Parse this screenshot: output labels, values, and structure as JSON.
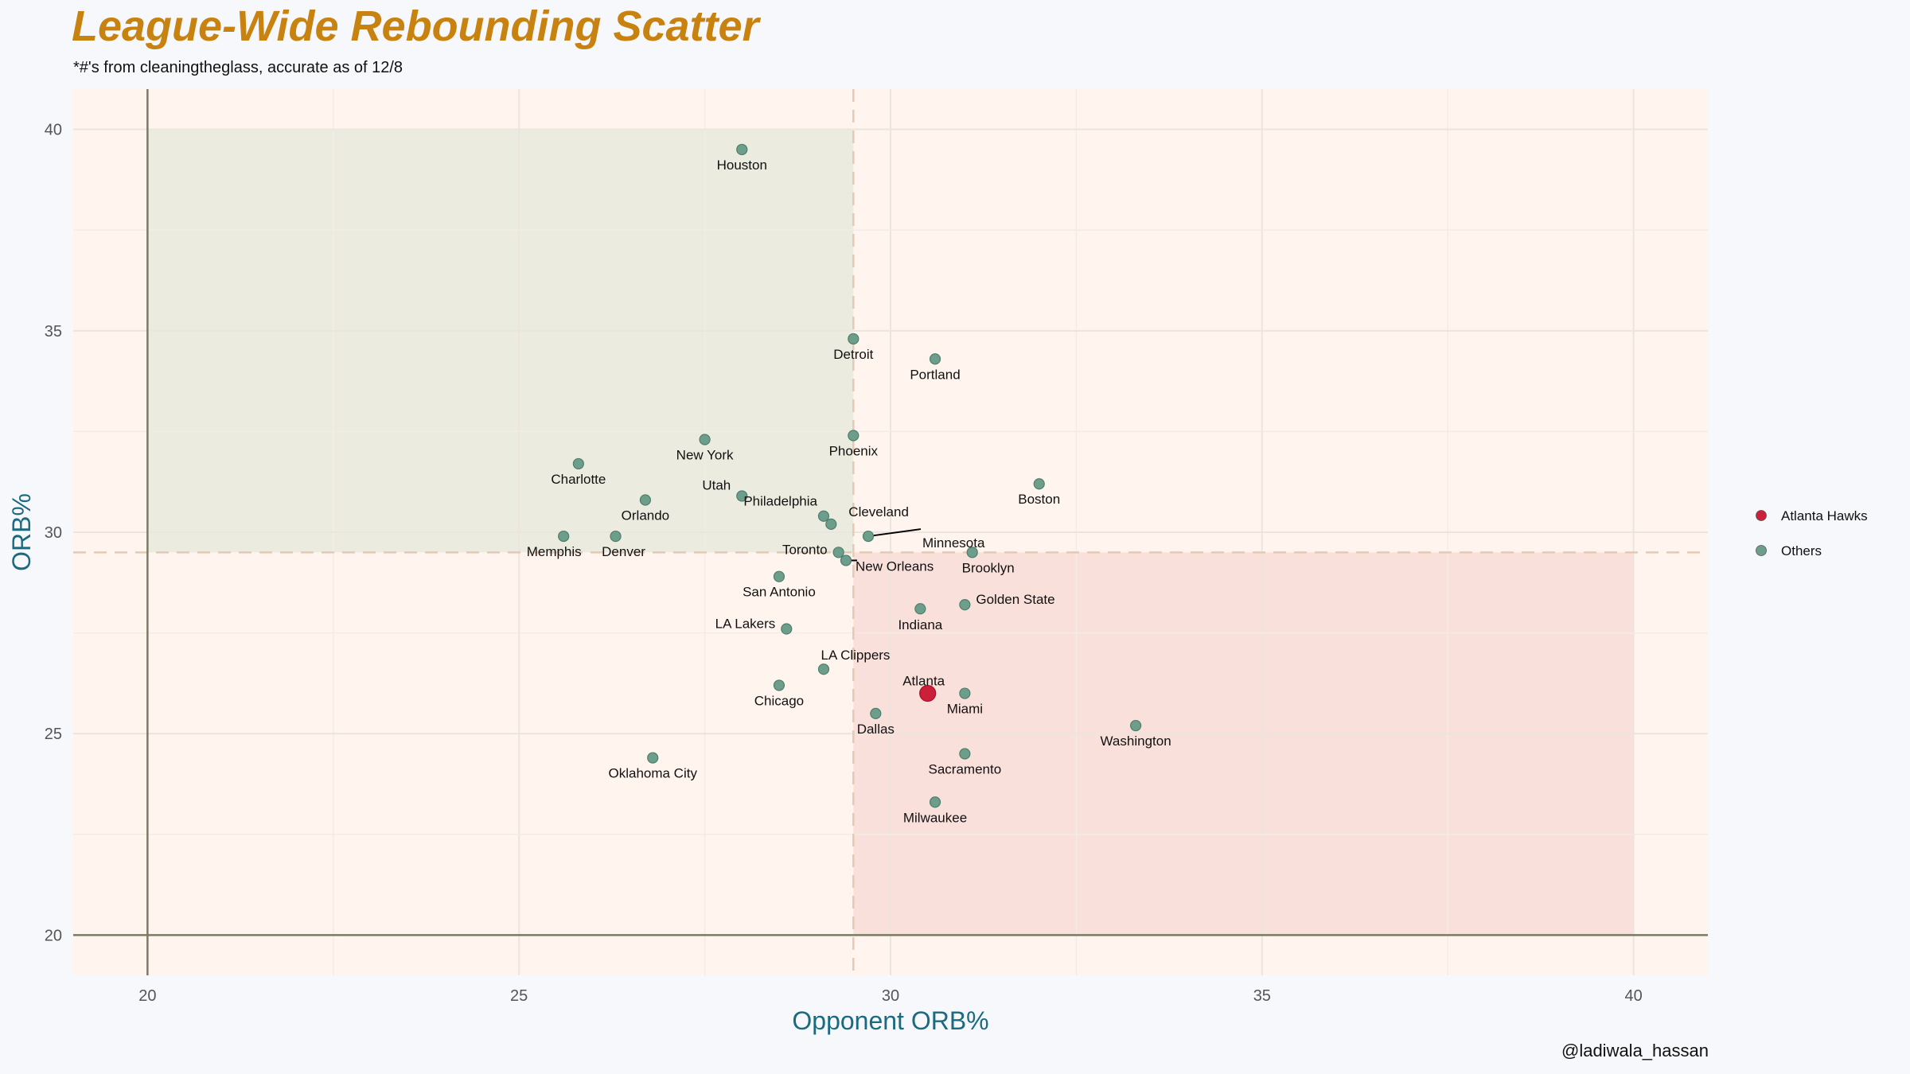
{
  "page": {
    "title": "League-Wide Rebounding Scatter",
    "subtitle": "*#'s from cleaningtheglass, accurate as of 12/8",
    "credit": "@ladiwala_hassan"
  },
  "colors": {
    "title": "#c8820f",
    "axis_title": "#1a6a80",
    "panel_bg": "#fff4ee",
    "page_bg": "#f7f8fc",
    "good_quadrant": "#ebebdf",
    "bad_quadrant": "#f9e0da",
    "reference_line": "#e6c9b4",
    "axis_line": "#7a7a66",
    "others": "#6d9e8c",
    "highlight": "#cc1f3a"
  },
  "chart_data": {
    "type": "scatter",
    "title": "League-Wide Rebounding Scatter",
    "subtitle": "*#'s from cleaningtheglass, accurate as of 12/8",
    "xlabel": "Opponent ORB%",
    "ylabel": "ORB%",
    "xlim": [
      19,
      41
    ],
    "ylim": [
      19,
      41
    ],
    "x_ticks": [
      20,
      25,
      30,
      35,
      40
    ],
    "y_ticks": [
      20,
      25,
      30,
      35,
      40
    ],
    "grid": true,
    "x_reference": 29.5,
    "y_reference": 29.5,
    "shaded_regions": [
      {
        "x": [
          20,
          29.5
        ],
        "y": [
          29.5,
          40
        ],
        "color": "#ebebdf"
      },
      {
        "x": [
          29.5,
          40
        ],
        "y": [
          20,
          29.5
        ],
        "color": "#f9e0da"
      }
    ],
    "legend": {
      "position": "right",
      "entries": [
        {
          "label": "Atlanta Hawks",
          "color": "#cc1f3a"
        },
        {
          "label": "Others",
          "color": "#6d9e8c"
        }
      ]
    },
    "series": [
      {
        "name": "Atlanta Hawks",
        "color": "#cc1f3a",
        "points": [
          {
            "team": "Atlanta",
            "x": 30.5,
            "y": 26.0
          }
        ]
      },
      {
        "name": "Others",
        "color": "#6d9e8c",
        "points": [
          {
            "team": "Houston",
            "x": 28.0,
            "y": 39.5
          },
          {
            "team": "Detroit",
            "x": 29.5,
            "y": 34.8
          },
          {
            "team": "Portland",
            "x": 30.6,
            "y": 34.3
          },
          {
            "team": "New York",
            "x": 27.5,
            "y": 32.3
          },
          {
            "team": "Phoenix",
            "x": 29.5,
            "y": 32.4
          },
          {
            "team": "Charlotte",
            "x": 25.8,
            "y": 31.7
          },
          {
            "team": "Boston",
            "x": 32.0,
            "y": 31.2
          },
          {
            "team": "Utah",
            "x": 28.0,
            "y": 30.9
          },
          {
            "team": "Orlando",
            "x": 26.7,
            "y": 30.8
          },
          {
            "team": "Philadelphia",
            "x": 29.1,
            "y": 30.4
          },
          {
            "team": "Cleveland",
            "x": 29.2,
            "y": 30.2
          },
          {
            "team": "Minnesota",
            "x": 29.7,
            "y": 29.9
          },
          {
            "team": "Memphis",
            "x": 25.6,
            "y": 29.9
          },
          {
            "team": "Denver",
            "x": 26.3,
            "y": 29.9
          },
          {
            "team": "Toronto",
            "x": 29.3,
            "y": 29.5
          },
          {
            "team": "New Orleans",
            "x": 29.4,
            "y": 29.3
          },
          {
            "team": "Brooklyn",
            "x": 31.1,
            "y": 29.5
          },
          {
            "team": "San Antonio",
            "x": 28.5,
            "y": 28.9
          },
          {
            "team": "Indiana",
            "x": 30.4,
            "y": 28.1
          },
          {
            "team": "Golden State",
            "x": 31.0,
            "y": 28.2
          },
          {
            "team": "LA Lakers",
            "x": 28.6,
            "y": 27.6
          },
          {
            "team": "LA Clippers",
            "x": 29.1,
            "y": 26.6
          },
          {
            "team": "Chicago",
            "x": 28.5,
            "y": 26.2
          },
          {
            "team": "Miami",
            "x": 31.0,
            "y": 26.0
          },
          {
            "team": "Dallas",
            "x": 29.8,
            "y": 25.5
          },
          {
            "team": "Washington",
            "x": 33.3,
            "y": 25.2
          },
          {
            "team": "Sacramento",
            "x": 31.0,
            "y": 24.5
          },
          {
            "team": "Oklahoma City",
            "x": 26.8,
            "y": 24.4
          },
          {
            "team": "Milwaukee",
            "x": 30.6,
            "y": 23.3
          }
        ]
      }
    ]
  }
}
